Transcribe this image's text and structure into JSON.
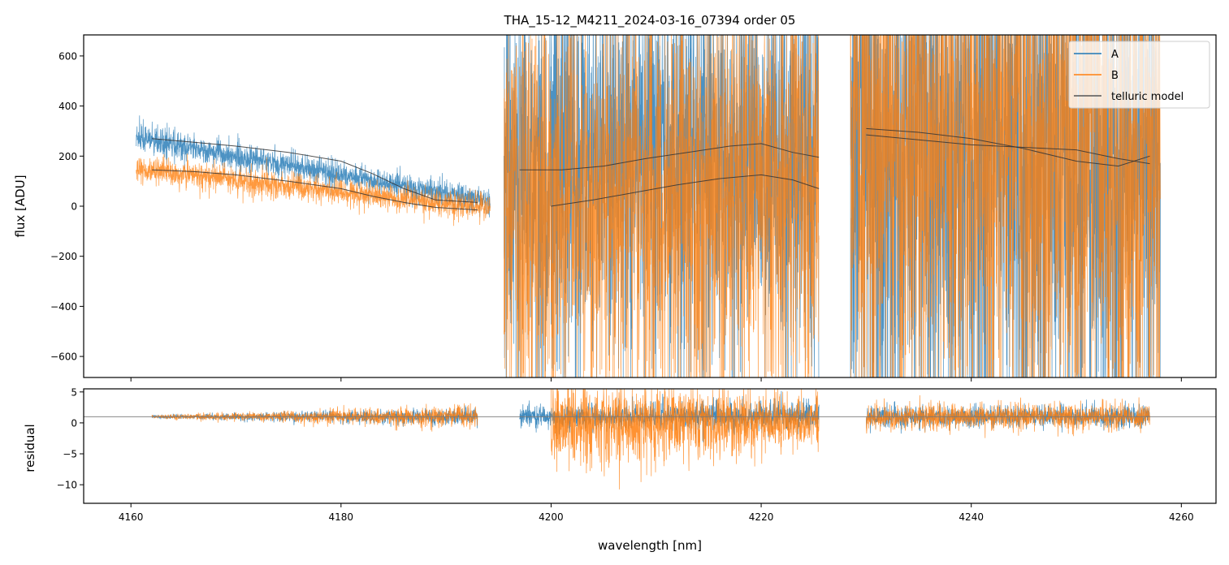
{
  "chart_data": [
    {
      "type": "line",
      "title": "THA_15-12_M4211_2024-03-16_07394  order 05",
      "xlabel": "",
      "ylabel": "flux [ADU]",
      "xlim": [
        4155.5,
        4263.3
      ],
      "ylim": [
        -684,
        684
      ],
      "xticks": [
        4160,
        4180,
        4200,
        4220,
        4240,
        4260
      ],
      "yticks": [
        -600,
        -400,
        -200,
        0,
        200,
        400,
        600
      ],
      "ytick_labels": [
        "−600",
        "−400",
        "−200",
        "0",
        "200",
        "400",
        "600"
      ],
      "legend": {
        "placement": "top-right",
        "entries": [
          "A",
          "B",
          "telluric model"
        ]
      },
      "series": [
        {
          "name": "A",
          "color": "#1f77b4",
          "segments": [
            {
              "x": [
                4160.5,
                4194.2
              ],
              "level": [
                270,
                20
              ],
              "noise": 25
            },
            {
              "x": [
                4195.5,
                4225.5
              ],
              "level": [
                145,
                200
              ],
              "noise": 420
            },
            {
              "x": [
                4228.5,
                4258.0
              ],
              "level": [
                280,
                190
              ],
              "noise": 650
            }
          ]
        },
        {
          "name": "B",
          "color": "#ff7f0e",
          "segments": [
            {
              "x": [
                4160.5,
                4194.2
              ],
              "level": [
                150,
                -10
              ],
              "noise": 25
            },
            {
              "x": [
                4195.5,
                4225.5
              ],
              "level": [
                0,
                80
              ],
              "noise": 420
            },
            {
              "x": [
                4228.5,
                4258.0
              ],
              "level": [
                300,
                170
              ],
              "noise": 650
            }
          ]
        },
        {
          "name": "telluric model",
          "color": "#333333",
          "segments": [
            {
              "x": [
                4162,
                4166,
                4170,
                4175,
                4180,
                4183,
                4186,
                4189,
                4193
              ],
              "y": [
                270,
                255,
                240,
                215,
                180,
                130,
                70,
                25,
                15
              ]
            },
            {
              "x": [
                4162,
                4166,
                4170,
                4175,
                4180,
                4183,
                4186,
                4189,
                4193
              ],
              "y": [
                145,
                138,
                125,
                100,
                70,
                40,
                15,
                -5,
                -15
              ]
            },
            {
              "x": [
                4197,
                4201,
                4205,
                4209,
                4213,
                4217,
                4220,
                4223,
                4225.5
              ],
              "y": [
                145,
                145,
                160,
                190,
                215,
                240,
                250,
                215,
                195
              ]
            },
            {
              "x": [
                4200,
                4204,
                4208,
                4212,
                4216,
                4220,
                4223,
                4225.5
              ],
              "y": [
                0,
                25,
                55,
                85,
                110,
                125,
                105,
                70
              ]
            },
            {
              "x": [
                4230,
                4235,
                4240,
                4245,
                4250,
                4254,
                4257
              ],
              "y": [
                285,
                265,
                245,
                235,
                225,
                190,
                170
              ]
            },
            {
              "x": [
                4230,
                4235,
                4240,
                4245,
                4250,
                4254,
                4257
              ],
              "y": [
                310,
                295,
                270,
                230,
                180,
                160,
                200
              ]
            }
          ]
        }
      ]
    },
    {
      "type": "line",
      "xlabel": "wavelength [nm]",
      "ylabel": "residual",
      "xlim": [
        4155.5,
        4263.3
      ],
      "ylim": [
        -13,
        5.5
      ],
      "xticks": [
        4160,
        4180,
        4200,
        4220,
        4240,
        4260
      ],
      "xtick_labels": [
        "4160",
        "4180",
        "4200",
        "4220",
        "4240",
        "4260"
      ],
      "yticks": [
        5,
        0,
        -5,
        -10
      ],
      "ytick_labels": [
        "5",
        "0",
        "−5",
        "−10"
      ],
      "reference_line": 1,
      "series": [
        {
          "name": "A",
          "color": "#1f77b4",
          "segments": [
            {
              "x": [
                4162,
                4193
              ],
              "noise": [
                0.2,
                1.0
              ]
            },
            {
              "x": [
                4197,
                4225.5
              ],
              "noise": [
                1.2,
                1.8
              ]
            },
            {
              "x": [
                4230,
                4257
              ],
              "noise": [
                1.3,
                1.3
              ]
            }
          ]
        },
        {
          "name": "B",
          "color": "#ff7f0e",
          "segments": [
            {
              "x": [
                4162,
                4193
              ],
              "noise": [
                0.2,
                1.3
              ]
            },
            {
              "x": [
                4200,
                4225.5
              ],
              "noise": [
                5,
                3
              ]
            },
            {
              "x": [
                4230,
                4257
              ],
              "noise": [
                1.5,
                1.5
              ]
            }
          ]
        }
      ]
    }
  ]
}
